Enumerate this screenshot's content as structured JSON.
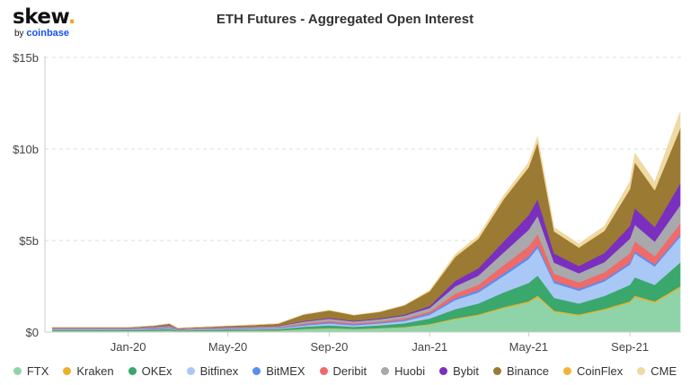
{
  "logo": {
    "text": "skew",
    "dot": ".",
    "by": "by",
    "brand": "coinbase"
  },
  "chart_data": {
    "type": "area",
    "stacked": true,
    "title": "ETH Futures - Aggregated Open Interest",
    "xlabel": "",
    "ylabel": "",
    "x_ticks": [
      "Jan-20",
      "May-20",
      "Sep-20",
      "Jan-21",
      "May-21",
      "Sep-21"
    ],
    "y_ticks": [
      "$0",
      "$5b",
      "$10b",
      "$15b"
    ],
    "ylim": [
      0,
      15
    ],
    "y_unit": "billion USD",
    "x_range": [
      "2019-09-22",
      "2021-11-02"
    ],
    "grid": true,
    "legend_position": "bottom",
    "x": [
      "2019-10-01",
      "2019-11-01",
      "2019-12-01",
      "2020-01-01",
      "2020-02-01",
      "2020-02-20",
      "2020-03-01",
      "2020-04-01",
      "2020-05-01",
      "2020-06-01",
      "2020-07-01",
      "2020-08-01",
      "2020-09-01",
      "2020-10-01",
      "2020-11-01",
      "2020-12-01",
      "2021-01-01",
      "2021-02-01",
      "2021-03-01",
      "2021-04-01",
      "2021-05-01",
      "2021-05-12",
      "2021-06-01",
      "2021-07-01",
      "2021-08-01",
      "2021-09-01",
      "2021-09-07",
      "2021-10-01",
      "2021-11-01"
    ],
    "series": [
      {
        "name": "FTX",
        "color": "#8fd4a9",
        "values": [
          0.05,
          0.05,
          0.05,
          0.05,
          0.06,
          0.08,
          0.04,
          0.05,
          0.06,
          0.07,
          0.08,
          0.15,
          0.2,
          0.15,
          0.2,
          0.25,
          0.4,
          0.7,
          0.9,
          1.3,
          1.6,
          1.9,
          1.1,
          0.9,
          1.2,
          1.6,
          1.9,
          1.6,
          2.4
        ]
      },
      {
        "name": "Kraken",
        "color": "#e8b32a",
        "values": [
          0.01,
          0.01,
          0.01,
          0.01,
          0.01,
          0.01,
          0.01,
          0.01,
          0.01,
          0.01,
          0.01,
          0.02,
          0.02,
          0.02,
          0.02,
          0.03,
          0.04,
          0.05,
          0.06,
          0.07,
          0.08,
          0.09,
          0.07,
          0.06,
          0.07,
          0.08,
          0.09,
          0.08,
          0.1
        ]
      },
      {
        "name": "OKEx",
        "color": "#3aa76d",
        "values": [
          0.05,
          0.05,
          0.05,
          0.05,
          0.06,
          0.07,
          0.04,
          0.05,
          0.06,
          0.06,
          0.07,
          0.12,
          0.15,
          0.12,
          0.15,
          0.2,
          0.3,
          0.5,
          0.6,
          0.8,
          1.0,
          1.1,
          0.7,
          0.6,
          0.7,
          0.9,
          1.0,
          0.9,
          1.3
        ]
      },
      {
        "name": "Bitfinex",
        "color": "#a9c8f5",
        "values": [
          0.03,
          0.03,
          0.03,
          0.03,
          0.03,
          0.04,
          0.02,
          0.03,
          0.03,
          0.04,
          0.04,
          0.07,
          0.1,
          0.08,
          0.1,
          0.12,
          0.2,
          0.5,
          0.6,
          0.9,
          1.3,
          1.5,
          0.8,
          0.7,
          0.8,
          1.1,
          1.3,
          1.0,
          1.4
        ]
      },
      {
        "name": "BitMEX",
        "color": "#5b8def",
        "values": [
          0.03,
          0.03,
          0.03,
          0.03,
          0.04,
          0.05,
          0.02,
          0.03,
          0.03,
          0.03,
          0.03,
          0.05,
          0.06,
          0.05,
          0.05,
          0.06,
          0.08,
          0.1,
          0.12,
          0.14,
          0.15,
          0.16,
          0.12,
          0.1,
          0.1,
          0.12,
          0.12,
          0.11,
          0.12
        ]
      },
      {
        "name": "Deribit",
        "color": "#ef6a6a",
        "values": [
          0.02,
          0.02,
          0.02,
          0.02,
          0.03,
          0.04,
          0.02,
          0.02,
          0.02,
          0.03,
          0.03,
          0.06,
          0.08,
          0.06,
          0.06,
          0.08,
          0.1,
          0.25,
          0.3,
          0.45,
          0.55,
          0.6,
          0.4,
          0.35,
          0.4,
          0.5,
          0.55,
          0.45,
          0.6
        ]
      },
      {
        "name": "Huobi",
        "color": "#a7a9ac",
        "values": [
          0.04,
          0.04,
          0.04,
          0.04,
          0.05,
          0.06,
          0.03,
          0.04,
          0.05,
          0.05,
          0.06,
          0.1,
          0.12,
          0.1,
          0.12,
          0.15,
          0.2,
          0.4,
          0.5,
          0.7,
          0.9,
          1.0,
          0.6,
          0.5,
          0.55,
          0.8,
          0.9,
          0.8,
          1.0
        ]
      },
      {
        "name": "Bybit",
        "color": "#7b2fbf",
        "values": [
          0.01,
          0.01,
          0.01,
          0.01,
          0.02,
          0.03,
          0.01,
          0.01,
          0.02,
          0.02,
          0.02,
          0.04,
          0.05,
          0.04,
          0.05,
          0.06,
          0.1,
          0.3,
          0.4,
          0.6,
          0.8,
          0.9,
          0.5,
          0.4,
          0.5,
          0.7,
          0.9,
          0.8,
          1.2
        ]
      },
      {
        "name": "Binance",
        "color": "#9b7a33",
        "values": [
          0.02,
          0.02,
          0.02,
          0.02,
          0.05,
          0.08,
          0.03,
          0.04,
          0.06,
          0.08,
          0.12,
          0.35,
          0.4,
          0.3,
          0.35,
          0.5,
          0.8,
          1.3,
          1.6,
          2.3,
          2.6,
          3.1,
          1.2,
          1.0,
          1.2,
          2.0,
          2.5,
          2.0,
          3.0
        ]
      },
      {
        "name": "CoinFlex",
        "color": "#f0b43c",
        "values": [
          0,
          0,
          0,
          0,
          0,
          0,
          0,
          0,
          0,
          0,
          0,
          0,
          0.01,
          0.01,
          0.01,
          0.01,
          0.02,
          0.03,
          0.03,
          0.03,
          0.03,
          0.03,
          0.02,
          0.02,
          0.02,
          0.02,
          0.02,
          0.02,
          0.02
        ]
      },
      {
        "name": "CME",
        "color": "#efd9a4",
        "values": [
          0,
          0,
          0,
          0,
          0,
          0,
          0,
          0,
          0,
          0,
          0,
          0,
          0,
          0,
          0,
          0.01,
          0.05,
          0.12,
          0.15,
          0.18,
          0.25,
          0.3,
          0.2,
          0.2,
          0.25,
          0.4,
          0.5,
          0.45,
          0.9
        ]
      }
    ]
  }
}
